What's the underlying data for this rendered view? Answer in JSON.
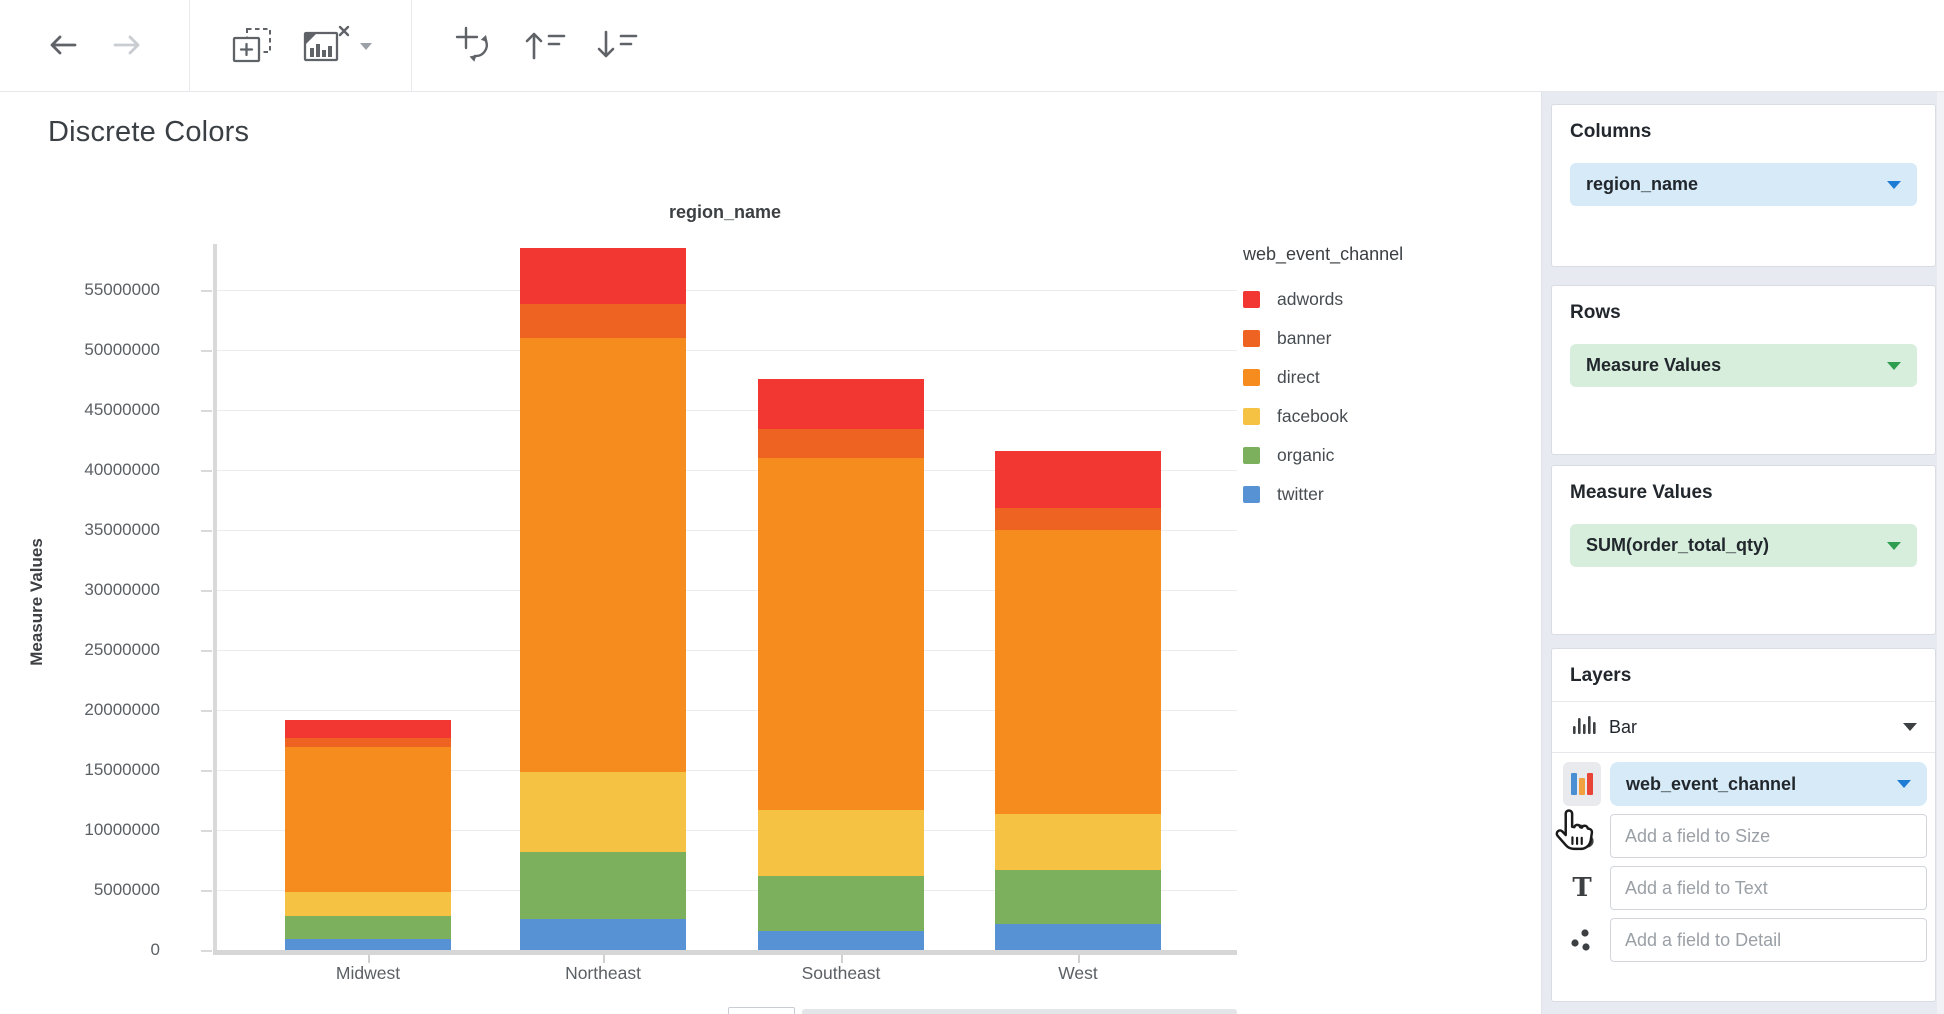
{
  "page_title": "Discrete Colors",
  "toolbar": {
    "icons": [
      "arrow-left-icon",
      "arrow-right-icon",
      "add-visualization-icon",
      "remove-visualization-icon",
      "dropdown-caret-icon",
      "swap-axes-icon",
      "sort-ascending-icon",
      "sort-descending-icon"
    ]
  },
  "chart_data": {
    "type": "bar",
    "stacked": true,
    "title": "region_name",
    "ylabel": "Measure Values",
    "categories": [
      "Midwest",
      "Northeast",
      "Southeast",
      "West"
    ],
    "series": [
      {
        "name": "twitter",
        "color": "#5793D4",
        "values": [
          900000,
          2600000,
          1600000,
          2200000
        ]
      },
      {
        "name": "organic",
        "color": "#7CB05C",
        "values": [
          1900000,
          5600000,
          4600000,
          4500000
        ]
      },
      {
        "name": "facebook",
        "color": "#F6C244",
        "values": [
          2000000,
          6600000,
          5500000,
          4600000
        ]
      },
      {
        "name": "direct",
        "color": "#F78C1E",
        "values": [
          12100000,
          36200000,
          29300000,
          23700000
        ]
      },
      {
        "name": "banner",
        "color": "#EE6321",
        "values": [
          800000,
          2800000,
          2400000,
          1800000
        ]
      },
      {
        "name": "adwords",
        "color": "#F23733",
        "values": [
          1500000,
          4700000,
          4200000,
          4800000
        ]
      }
    ],
    "y_ticks": [
      0,
      5000000,
      10000000,
      15000000,
      20000000,
      25000000,
      30000000,
      35000000,
      40000000,
      45000000,
      50000000,
      55000000
    ],
    "ylim": [
      0,
      59500000
    ],
    "grid": true,
    "legend": {
      "title": "web_event_channel",
      "position": "right",
      "items": [
        "adwords",
        "banner",
        "direct",
        "facebook",
        "organic",
        "twitter"
      ]
    }
  },
  "sidebar": {
    "columns_panel": {
      "title": "Columns",
      "field": "region_name"
    },
    "rows_panel": {
      "title": "Rows",
      "field": "Measure Values"
    },
    "measure_values_panel": {
      "title": "Measure Values",
      "field": "SUM(order_total_qty)"
    },
    "layers_panel": {
      "title": "Layers",
      "layer_type": "Bar",
      "color_field": "web_event_channel",
      "size_placeholder": "Add a field to Size",
      "text_placeholder": "Add a field to Text",
      "detail_placeholder": "Add a field to Detail",
      "shelf_icons": [
        "color-shelf-icon",
        "size-shelf-icon",
        "text-shelf-icon",
        "detail-shelf-icon"
      ]
    }
  },
  "colors": {
    "dimension_pill_bg": "#D7EAF8",
    "measure_pill_bg": "#D7EEDD",
    "dimension_accent": "#1F7CD4",
    "measure_accent": "#2E9E4E",
    "sidebar_bg": "#E7EAF0",
    "axis_text": "#5B6065",
    "grid_line": "#ECECEC",
    "toolbar_icon": "#5F6368"
  }
}
